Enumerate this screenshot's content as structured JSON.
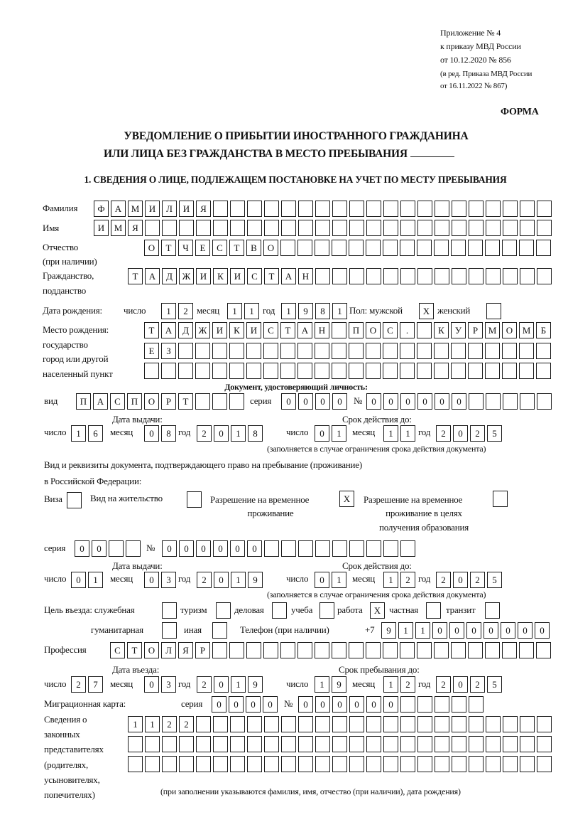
{
  "header": {
    "appendix": [
      "Приложение № 4",
      "к приказу МВД России",
      "от 10.12.2020 № 856",
      "(в ред. Приказа МВД России",
      "от 16.11.2022 № 867)"
    ],
    "forma": "ФОРМА",
    "title_line1": "УВЕДОМЛЕНИЕ О ПРИБЫТИИ ИНОСТРАННОГО ГРАЖДАНИНА",
    "title_line2": "ИЛИ ЛИЦА БЕЗ ГРАЖДАНСТВА В МЕСТО ПРЕБЫВАНИЯ",
    "section1": "1. СВЕДЕНИЯ О ЛИЦЕ, ПОДЛЕЖАЩЕМ ПОСТАНОВКЕ НА УЧЕТ ПО МЕСТУ ПРЕБЫВАНИЯ"
  },
  "labels": {
    "surname": "Фамилия",
    "name": "Имя",
    "patronymic": "Отчество",
    "patronymic_note": "(при наличии)",
    "citizenship1": "Гражданство,",
    "citizenship2": "подданство",
    "birth_date": "Дата рождения:",
    "day": "число",
    "month": "месяц",
    "year": "год",
    "sex_male": "Пол: мужской",
    "sex_female": "женский",
    "birthplace1": "Место рождения:",
    "birthplace2": "государство",
    "birthplace3": "город или другой",
    "birthplace4": "населенный пункт",
    "id_doc_heading": "Документ, удостоверяющий личность:",
    "kind": "вид",
    "series": "серия",
    "number": "№",
    "issue_date": "Дата выдачи:",
    "valid_until": "Срок действия до:",
    "validity_note": "(заполняется в случае ограничения срока действия документа)",
    "stay_doc1": "Вид и реквизиты документа, подтверждающего право на пребывание (проживание)",
    "stay_doc2": "в Российской Федерации:",
    "visa": "Виза",
    "residence_permit": "Вид на жительство",
    "temp_residence1": "Разрешение на временное",
    "temp_residence2": "проживание",
    "temp_edu1": "Разрешение на временное",
    "temp_edu2": "проживание в целях",
    "temp_edu3": "получения образования",
    "purpose": "Цель въезда: служебная",
    "tourism": "туризм",
    "business": "деловая",
    "study": "учеба",
    "work": "работа",
    "private": "частная",
    "transit": "транзит",
    "humanitarian": "гуманитарная",
    "other": "иная",
    "phone": "Телефон (при наличии)",
    "phone_prefix": "+7",
    "profession": "Профессия",
    "entry_date": "Дата въезда:",
    "stay_until": "Срок пребывания до:",
    "migration_card": "Миграционная карта:",
    "rep1": "Сведения о",
    "rep2": "законных",
    "rep3": "представителях",
    "rep4": "(родителях,",
    "rep5": "усыновителях,",
    "rep6": "попечителях)",
    "rep_note": "(при заполнении указываются фамилия, имя, отчество (при наличии), дата рождения)"
  },
  "person": {
    "surname": "ФАМИЛИЯ",
    "name": "ИМЯ",
    "patronymic": "ОТЧЕСТВО",
    "citizenship": "ТАДЖИКИСТАН",
    "birth": {
      "day": "12",
      "month": "11",
      "year": "1981"
    },
    "sex_male": "X",
    "sex_female": "",
    "birthplace": [
      "ТАДЖИКИСТАН ПОС. КУРМОМБ",
      "ЕЗ",
      ""
    ]
  },
  "id_doc": {
    "kind": "ПАСПОРТ",
    "series": "0000",
    "number": "000000",
    "issue": {
      "day": "16",
      "month": "08",
      "year": "2018"
    },
    "valid": {
      "day": "01",
      "month": "11",
      "year": "2025"
    }
  },
  "stay_doc": {
    "visa": "",
    "residence_permit": "",
    "temp_residence": "X",
    "temp_edu": "",
    "series": "00",
    "number": "000000",
    "issue": {
      "day": "01",
      "month": "03",
      "year": "2019"
    },
    "valid": {
      "day": "01",
      "month": "12",
      "year": "2025"
    }
  },
  "purpose": {
    "service": "",
    "tourism": "",
    "business": "",
    "study": "",
    "work": "X",
    "private": "",
    "transit": "",
    "humanitarian": "",
    "other": ""
  },
  "phone": "9110000000",
  "profession": "СТОЛЯР",
  "entry": {
    "day": "27",
    "month": "03",
    "year": "2019"
  },
  "stay_until": {
    "day": "19",
    "month": "12",
    "year": "2025"
  },
  "migration_card": {
    "series": "0000",
    "number": "000000"
  },
  "representatives": [
    "1122",
    "",
    ""
  ]
}
